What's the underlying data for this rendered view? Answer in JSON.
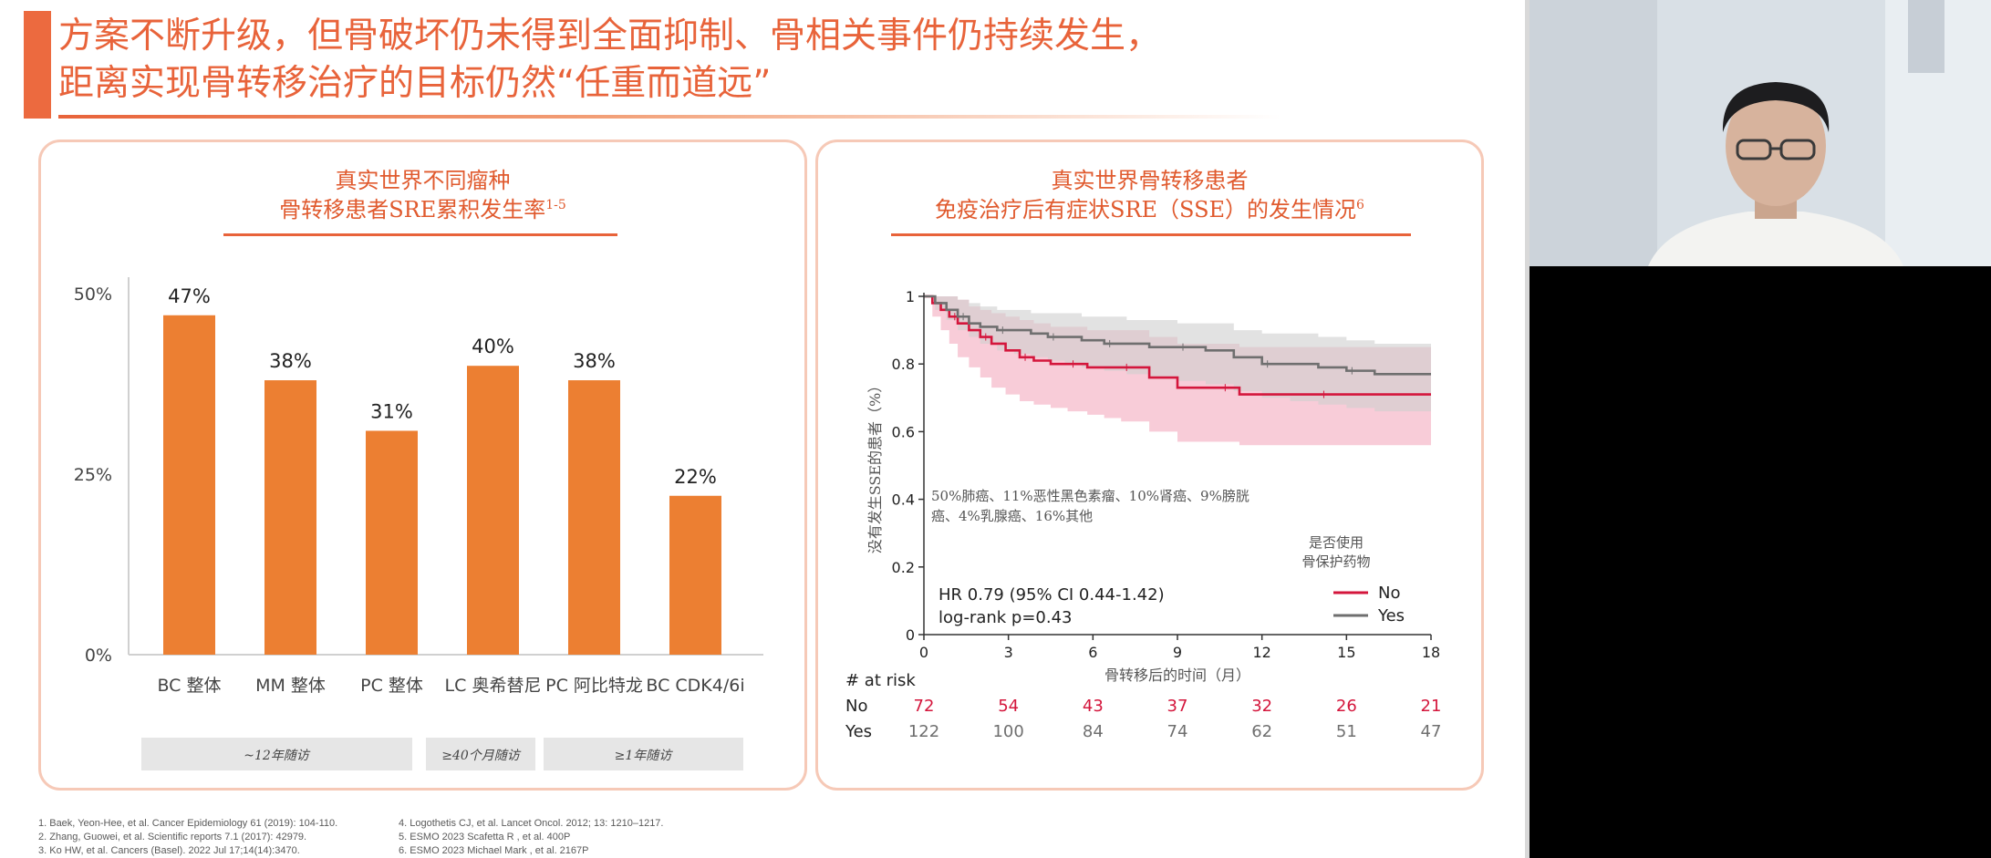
{
  "slide": {
    "title_line1": "方案不断升级，但骨破坏仍未得到全面抑制、骨相关事件仍持续发生，",
    "title_line2": "距离实现骨转移治疗的目标仍然“任重而道远”"
  },
  "left_panel": {
    "title_line1": "真实世界不同瘤种",
    "title_line2": "骨转移患者SRE累积发生率",
    "title_sup": "1-5",
    "followup_labels": [
      "~12年随访",
      "≥40个月随访",
      "≥1年随访"
    ]
  },
  "right_panel": {
    "title_line1": "真实世界骨转移患者",
    "title_line2": "免疫治疗后有症状SRE（SSE）的发生情况",
    "title_sup": "6",
    "annotation_line1": "50%肺癌、11%恶性黑色素瘤、10%肾癌、9%膀胱",
    "annotation_line2": "癌、4%乳腺癌、16%其他",
    "legend_title_line1": "是否使用",
    "legend_title_line2": "骨保护药物",
    "legend": [
      {
        "label": "No",
        "color": "#d4163c"
      },
      {
        "label": "Yes",
        "color": "#6f6f6f"
      }
    ],
    "hr_text": "HR 0.79 (95% CI 0.44-1.42)",
    "logrank_text": "log-rank p=0.43",
    "at_risk_header": "# at risk",
    "at_risk_rows": [
      {
        "label": "No",
        "color": "#d4163c",
        "values": [
          "72",
          "54",
          "43",
          "37",
          "32",
          "26",
          "21"
        ]
      },
      {
        "label": "Yes",
        "color": "#6f6f6f",
        "values": [
          "122",
          "100",
          "84",
          "74",
          "62",
          "51",
          "47"
        ]
      }
    ]
  },
  "footnotes": {
    "left": [
      "1. Baek, Yeon-Hee, et al. Cancer Epidemiology 61 (2019): 104-110.",
      "2. Zhang, Guowei, et al. Scientific reports 7.1 (2017): 42979.",
      "3. Ko HW, et al. Cancers (Basel). 2022 Jul 17;14(14):3470."
    ],
    "right": [
      "4. Logothetis CJ, et al. Lancet Oncol. 2012; 13: 1210–1217.",
      "5. ESMO 2023 Scafetta R , et al.  400P",
      "6. ESMO 2023 Michael Mark , et al. 2167P"
    ]
  },
  "chart_data": [
    {
      "type": "bar",
      "categories": [
        "BC 整体",
        "MM 整体",
        "PC 整体",
        "LC 奥希替尼",
        "PC 阿比特龙",
        "BC CDK4/6i"
      ],
      "values": [
        47,
        38,
        31,
        40,
        38,
        22
      ],
      "data_labels": [
        "47%",
        "38%",
        "31%",
        "40%",
        "38%",
        "22%"
      ],
      "ylim": [
        0,
        50
      ],
      "y_ticks": [
        "0%",
        "25%",
        "50%"
      ],
      "color": "#ec7f32",
      "grid": false
    },
    {
      "type": "line",
      "xlabel": "骨转移后的时间（月）",
      "ylabel": "没有发生SSE的患者（%）",
      "xlim": [
        0,
        18
      ],
      "ylim": [
        0,
        1
      ],
      "x_ticks": [
        "0",
        "3",
        "6",
        "9",
        "12",
        "15",
        "18"
      ],
      "y_ticks": [
        "0",
        "0.2",
        "0.4",
        "0.6",
        "0.8",
        "1"
      ],
      "legend_position": "bottom-right",
      "series": [
        {
          "name": "No",
          "color": "#d4163c",
          "band_color": "#f2a3b8",
          "x": [
            0,
            0.3,
            0.6,
            0.9,
            1.2,
            1.6,
            2.0,
            2.4,
            2.9,
            3.4,
            3.9,
            4.5,
            5.1,
            5.8,
            6.4,
            7.0,
            8.0,
            9.0,
            10.5,
            11.2,
            12.5,
            14.0,
            15.5,
            18.0
          ],
          "y": [
            1,
            0.98,
            0.96,
            0.94,
            0.92,
            0.9,
            0.88,
            0.86,
            0.84,
            0.82,
            0.81,
            0.8,
            0.8,
            0.79,
            0.79,
            0.79,
            0.76,
            0.73,
            0.73,
            0.71,
            0.71,
            0.71,
            0.71,
            0.71
          ],
          "ci_lower": [
            1,
            0.94,
            0.9,
            0.86,
            0.82,
            0.79,
            0.76,
            0.73,
            0.71,
            0.69,
            0.68,
            0.67,
            0.66,
            0.65,
            0.64,
            0.63,
            0.6,
            0.57,
            0.57,
            0.56,
            0.56,
            0.56,
            0.56,
            0.56
          ],
          "ci_upper": [
            1,
            1,
            1,
            1,
            0.99,
            0.97,
            0.96,
            0.95,
            0.94,
            0.93,
            0.92,
            0.91,
            0.91,
            0.9,
            0.9,
            0.9,
            0.88,
            0.86,
            0.86,
            0.85,
            0.85,
            0.85,
            0.85,
            0.85
          ]
        },
        {
          "name": "Yes",
          "color": "#6f6f6f",
          "band_color": "#cfcfcf",
          "x": [
            0,
            0.4,
            0.8,
            1.2,
            1.6,
            2.0,
            2.6,
            3.2,
            3.8,
            4.4,
            5.0,
            5.6,
            6.4,
            7.2,
            8.0,
            9.0,
            10.0,
            11.0,
            12.0,
            13.0,
            14.0,
            15.0,
            16.0,
            18.0
          ],
          "y": [
            1,
            0.98,
            0.96,
            0.94,
            0.92,
            0.91,
            0.9,
            0.9,
            0.89,
            0.88,
            0.88,
            0.87,
            0.86,
            0.86,
            0.85,
            0.85,
            0.84,
            0.82,
            0.8,
            0.8,
            0.79,
            0.78,
            0.77,
            0.77
          ],
          "ci_lower": [
            1,
            0.96,
            0.93,
            0.9,
            0.88,
            0.86,
            0.84,
            0.83,
            0.82,
            0.81,
            0.8,
            0.79,
            0.78,
            0.77,
            0.76,
            0.75,
            0.74,
            0.72,
            0.7,
            0.69,
            0.68,
            0.67,
            0.66,
            0.66
          ],
          "ci_upper": [
            1,
            1,
            1,
            0.99,
            0.98,
            0.97,
            0.96,
            0.96,
            0.95,
            0.95,
            0.95,
            0.94,
            0.94,
            0.93,
            0.93,
            0.92,
            0.92,
            0.9,
            0.89,
            0.89,
            0.88,
            0.87,
            0.86,
            0.86
          ]
        }
      ]
    }
  ]
}
